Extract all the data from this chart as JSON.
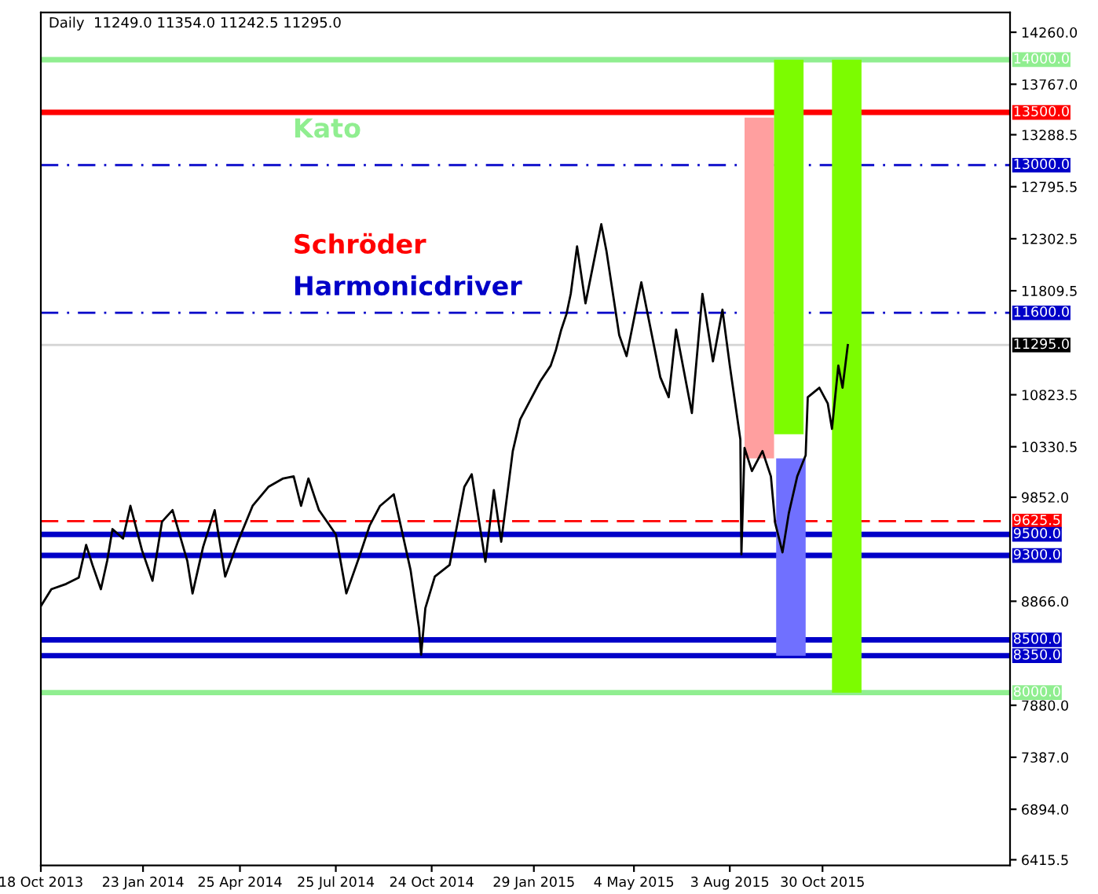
{
  "chart_data": {
    "type": "line",
    "title": "Daily  11249.0 11354.0 11242.5 11295.0",
    "annotations": [
      "Kato",
      "Schröder",
      "Harmonicdriver"
    ],
    "xlim": [
      "2013-10-18",
      "2016-04-25"
    ],
    "ylim": [
      6362,
      14447
    ],
    "xticks": [
      {
        "value": "2013-10-18",
        "label": "18 Oct 2013"
      },
      {
        "value": "2014-01-23",
        "label": "23 Jan 2014"
      },
      {
        "value": "2014-04-25",
        "label": "25 Apr 2014"
      },
      {
        "value": "2014-07-25",
        "label": "25 Jul 2014"
      },
      {
        "value": "2014-10-24",
        "label": "24 Oct 2014"
      },
      {
        "value": "2015-01-29",
        "label": "29 Jan 2015"
      },
      {
        "value": "2015-05-04",
        "label": "4 May 2015"
      },
      {
        "value": "2015-08-03",
        "label": "3 Aug 2015"
      },
      {
        "value": "2015-10-30",
        "label": "30 Oct 2015"
      }
    ],
    "yticks": [
      {
        "value": 14260,
        "label": "14260.0"
      },
      {
        "value": 13767,
        "label": "13767.0"
      },
      {
        "value": 13288.5,
        "label": "13288.5"
      },
      {
        "value": 12795.5,
        "label": "12795.5"
      },
      {
        "value": 12302.5,
        "label": "12302.5"
      },
      {
        "value": 11809.5,
        "label": "11809.5"
      },
      {
        "value": 10823.5,
        "label": "10823.5"
      },
      {
        "value": 10330.5,
        "label": "10330.5"
      },
      {
        "value": 9852,
        "label": "9852.0"
      },
      {
        "value": 8866,
        "label": "8866.0"
      },
      {
        "value": 7880,
        "label": "7880.0"
      },
      {
        "value": 7387,
        "label": "7387.0"
      },
      {
        "value": 6894,
        "label": "6894.0"
      },
      {
        "value": 6415.5,
        "label": "6415.5"
      }
    ],
    "grid": false,
    "series": [
      {
        "type": "bar",
        "x": [
          "2015-08-31",
          "2015-09-28",
          "2015-09-30",
          "2015-11-22"
        ],
        "base": [
          10220,
          10450,
          8350,
          8000
        ],
        "values": [
          3230,
          3550,
          1870,
          6000
        ],
        "colors": [
          "#ff9f9f",
          "#7cfc00",
          "#7070ff",
          "#7cfc00"
        ]
      },
      {
        "color": "#000000",
        "x": [
          "2013-10-18",
          "2013-10-28",
          "2013-11-11",
          "2013-11-23",
          "2013-11-30",
          "2013-12-06",
          "2013-12-14",
          "2013-12-20",
          "2013-12-25",
          "2014-01-04",
          "2014-01-11",
          "2014-01-22",
          "2014-02-01",
          "2014-02-10",
          "2014-02-20",
          "2014-03-06",
          "2014-03-11",
          "2014-03-21",
          "2014-04-01",
          "2014-04-11",
          "2014-04-23",
          "2014-05-07",
          "2014-05-22",
          "2014-06-05",
          "2014-06-15",
          "2014-06-22",
          "2014-06-29",
          "2014-07-09",
          "2014-07-25",
          "2014-08-04",
          "2014-08-16",
          "2014-08-26",
          "2014-09-05",
          "2014-09-18",
          "2014-10-04",
          "2014-10-12",
          "2014-10-14",
          "2014-10-18",
          "2014-10-27",
          "2014-11-10",
          "2014-11-24",
          "2014-12-01",
          "2014-12-14",
          "2014-12-22",
          "2014-12-29",
          "2015-01-09",
          "2015-01-16",
          "2015-02-04",
          "2015-02-14",
          "2015-02-19",
          "2015-02-24",
          "2015-03-01",
          "2015-03-05",
          "2015-03-11",
          "2015-03-19",
          "2015-04-03",
          "2015-04-08",
          "2015-04-20",
          "2015-04-27",
          "2015-05-11",
          "2015-05-29",
          "2015-06-06",
          "2015-06-13",
          "2015-06-28",
          "2015-07-08",
          "2015-07-18",
          "2015-07-27",
          "2015-08-03",
          "2015-08-06",
          "2015-08-13",
          "2015-08-14",
          "2015-08-17",
          "2015-08-24",
          "2015-09-03",
          "2015-09-11",
          "2015-09-15",
          "2015-09-22",
          "2015-09-28",
          "2015-10-06",
          "2015-10-14",
          "2015-10-16",
          "2015-10-27",
          "2015-11-04",
          "2015-11-08",
          "2015-11-14",
          "2015-11-18",
          "2015-11-23"
        ],
        "values": [
          8820,
          8980,
          9030,
          9090,
          9400,
          9210,
          8980,
          9250,
          9550,
          9460,
          9770,
          9350,
          9060,
          9620,
          9730,
          9250,
          8940,
          9380,
          9730,
          9100,
          9430,
          9770,
          9950,
          10030,
          10050,
          9770,
          10030,
          9730,
          9500,
          8940,
          9280,
          9580,
          9770,
          9880,
          9160,
          8610,
          8360,
          8800,
          9100,
          9210,
          9950,
          10070,
          9240,
          9920,
          9430,
          10290,
          10590,
          10950,
          11100,
          11250,
          11440,
          11590,
          11780,
          12230,
          11690,
          12440,
          12180,
          11390,
          11190,
          11890,
          10990,
          10800,
          11440,
          10650,
          11780,
          11140,
          11630,
          11100,
          10890,
          10400,
          9310,
          10320,
          10100,
          10290,
          10050,
          9610,
          9330,
          9700,
          10050,
          10250,
          10800,
          10890,
          10740,
          10500,
          11100,
          10890,
          11295
        ]
      }
    ],
    "ref_lines": [
      {
        "axis": "y",
        "value": 14000,
        "label": "14000.0",
        "color": "#90ee90",
        "line_style": "solid"
      },
      {
        "axis": "y",
        "value": 13500,
        "label": "13500.0",
        "color": "#ff0000",
        "line_style": "solid"
      },
      {
        "axis": "y",
        "value": 13000,
        "label": "13000.0",
        "color": "#0000c8",
        "line_style": "dashdot"
      },
      {
        "axis": "y",
        "value": 11600,
        "label": "11600.0",
        "color": "#0000c8",
        "line_style": "dashdot"
      },
      {
        "axis": "y",
        "value": 11295,
        "label": "11295.0",
        "color": "#d3d3d3",
        "line_style": "solid"
      },
      {
        "axis": "y",
        "value": 9625.5,
        "label": "9625.5",
        "color": "#ff0000",
        "line_style": "dashed"
      },
      {
        "axis": "y",
        "value": 9500,
        "label": "9500.0",
        "color": "#0000c8",
        "line_style": "solid"
      },
      {
        "axis": "y",
        "value": 9300,
        "label": "9300.0",
        "color": "#0000c8",
        "line_style": "solid"
      },
      {
        "axis": "y",
        "value": 8500,
        "label": "8500.0",
        "color": "#0000c8",
        "line_style": "solid"
      },
      {
        "axis": "y",
        "value": 8350,
        "label": "8350.0",
        "color": "#0000c8",
        "line_style": "solid"
      },
      {
        "axis": "y",
        "value": 8000,
        "label": "8000.0",
        "color": "#90ee90",
        "line_style": "solid"
      }
    ]
  }
}
